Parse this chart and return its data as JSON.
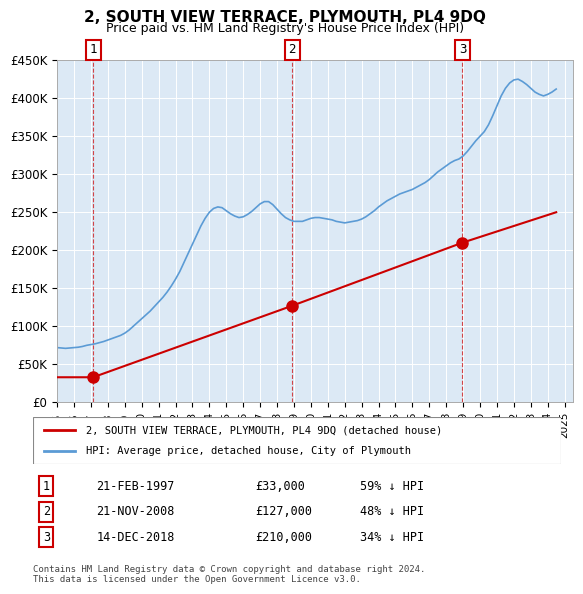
{
  "title": "2, SOUTH VIEW TERRACE, PLYMOUTH, PL4 9DQ",
  "subtitle": "Price paid vs. HM Land Registry's House Price Index (HPI)",
  "background_color": "#dce9f5",
  "plot_bg_color": "#dce9f5",
  "ylim": [
    0,
    450000
  ],
  "xlim_start": 1995.0,
  "xlim_end": 2025.5,
  "yticks": [
    0,
    50000,
    100000,
    150000,
    200000,
    250000,
    300000,
    350000,
    400000,
    450000
  ],
  "ytick_labels": [
    "£0",
    "£50K",
    "£100K",
    "£150K",
    "£200K",
    "£250K",
    "£300K",
    "£350K",
    "£400K",
    "£450K"
  ],
  "xtick_years": [
    1995,
    1996,
    1997,
    1998,
    1999,
    2000,
    2001,
    2002,
    2003,
    2004,
    2005,
    2006,
    2007,
    2008,
    2009,
    2010,
    2011,
    2012,
    2013,
    2014,
    2015,
    2016,
    2017,
    2018,
    2019,
    2020,
    2021,
    2022,
    2023,
    2024,
    2025
  ],
  "sales": [
    {
      "label": "1",
      "date": "21-FEB-1997",
      "year": 1997.13,
      "price": 33000,
      "hpi_pct": "59% ↓ HPI"
    },
    {
      "label": "2",
      "date": "21-NOV-2008",
      "year": 2008.89,
      "price": 127000,
      "hpi_pct": "48% ↓ HPI"
    },
    {
      "label": "3",
      "date": "14-DEC-2018",
      "year": 2018.96,
      "price": 210000,
      "hpi_pct": "34% ↓ HPI"
    }
  ],
  "sale_color": "#cc0000",
  "hpi_color": "#5b9bd5",
  "legend_label_sale": "2, SOUTH VIEW TERRACE, PLYMOUTH, PL4 9DQ (detached house)",
  "legend_label_hpi": "HPI: Average price, detached house, City of Plymouth",
  "footer": "Contains HM Land Registry data © Crown copyright and database right 2024.\nThis data is licensed under the Open Government Licence v3.0.",
  "hpi_data_x": [
    1995.0,
    1995.25,
    1995.5,
    1995.75,
    1996.0,
    1996.25,
    1996.5,
    1996.75,
    1997.0,
    1997.25,
    1997.5,
    1997.75,
    1998.0,
    1998.25,
    1998.5,
    1998.75,
    1999.0,
    1999.25,
    1999.5,
    1999.75,
    2000.0,
    2000.25,
    2000.5,
    2000.75,
    2001.0,
    2001.25,
    2001.5,
    2001.75,
    2002.0,
    2002.25,
    2002.5,
    2002.75,
    2003.0,
    2003.25,
    2003.5,
    2003.75,
    2004.0,
    2004.25,
    2004.5,
    2004.75,
    2005.0,
    2005.25,
    2005.5,
    2005.75,
    2006.0,
    2006.25,
    2006.5,
    2006.75,
    2007.0,
    2007.25,
    2007.5,
    2007.75,
    2008.0,
    2008.25,
    2008.5,
    2008.75,
    2009.0,
    2009.25,
    2009.5,
    2009.75,
    2010.0,
    2010.25,
    2010.5,
    2010.75,
    2011.0,
    2011.25,
    2011.5,
    2011.75,
    2012.0,
    2012.25,
    2012.5,
    2012.75,
    2013.0,
    2013.25,
    2013.5,
    2013.75,
    2014.0,
    2014.25,
    2014.5,
    2014.75,
    2015.0,
    2015.25,
    2015.5,
    2015.75,
    2016.0,
    2016.25,
    2016.5,
    2016.75,
    2017.0,
    2017.25,
    2017.5,
    2017.75,
    2018.0,
    2018.25,
    2018.5,
    2018.75,
    2019.0,
    2019.25,
    2019.5,
    2019.75,
    2020.0,
    2020.25,
    2020.5,
    2020.75,
    2021.0,
    2021.25,
    2021.5,
    2021.75,
    2022.0,
    2022.25,
    2022.5,
    2022.75,
    2023.0,
    2023.25,
    2023.5,
    2023.75,
    2024.0,
    2024.25,
    2024.5
  ],
  "hpi_data_y": [
    72000,
    71500,
    71000,
    71500,
    72000,
    72500,
    73500,
    75000,
    76000,
    77000,
    78500,
    80000,
    82000,
    84000,
    86000,
    88000,
    91000,
    95000,
    100000,
    105000,
    110000,
    115000,
    120000,
    126000,
    132000,
    138000,
    145000,
    153000,
    162000,
    172000,
    184000,
    196000,
    208000,
    220000,
    232000,
    242000,
    250000,
    255000,
    257000,
    256000,
    252000,
    248000,
    245000,
    243000,
    244000,
    247000,
    251000,
    256000,
    261000,
    264000,
    264000,
    260000,
    254000,
    248000,
    243000,
    240000,
    238000,
    238000,
    238000,
    240000,
    242000,
    243000,
    243000,
    242000,
    241000,
    240000,
    238000,
    237000,
    236000,
    237000,
    238000,
    239000,
    241000,
    244000,
    248000,
    252000,
    257000,
    261000,
    265000,
    268000,
    271000,
    274000,
    276000,
    278000,
    280000,
    283000,
    286000,
    289000,
    293000,
    298000,
    303000,
    307000,
    311000,
    315000,
    318000,
    320000,
    324000,
    330000,
    337000,
    344000,
    350000,
    356000,
    365000,
    377000,
    390000,
    403000,
    413000,
    420000,
    424000,
    425000,
    422000,
    418000,
    413000,
    408000,
    405000,
    403000,
    405000,
    408000,
    412000
  ],
  "sale_line_x": [
    1995.0,
    1997.13,
    2008.89,
    2018.96,
    2024.5
  ],
  "sale_line_y": [
    33000,
    33000,
    127000,
    210000,
    250000
  ]
}
